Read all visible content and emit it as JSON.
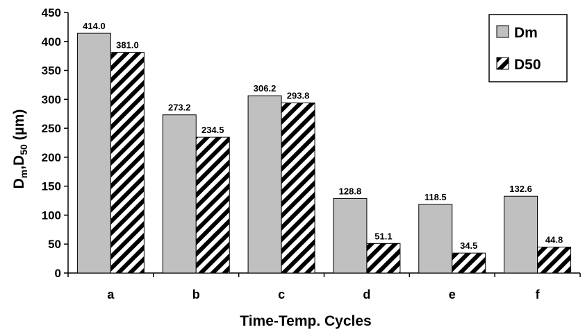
{
  "chart_data": {
    "type": "bar",
    "categories": [
      "a",
      "b",
      "c",
      "d",
      "e",
      "f"
    ],
    "series": [
      {
        "name": "Dm",
        "values": [
          414.0,
          273.2,
          306.2,
          128.8,
          118.5,
          132.6
        ],
        "labels": [
          "414.0",
          "273.2",
          "306.2",
          "128.8",
          "118.5",
          "132.6"
        ]
      },
      {
        "name": "D50",
        "values": [
          381.0,
          234.5,
          293.8,
          51.1,
          34.5,
          44.8
        ],
        "labels": [
          "381.0",
          "234.5",
          "293.8",
          "51.1",
          "34.5",
          "44.8"
        ]
      }
    ],
    "xlabel": "Time-Temp. Cycles",
    "ylabel": {
      "base1": "D",
      "sub1": "m",
      "sep": ",",
      "base2": "D",
      "sub2": "50",
      "unit": " (µm)"
    },
    "ylim": [
      0,
      450
    ],
    "yticks": [
      0,
      50,
      100,
      150,
      200,
      250,
      300,
      350,
      400,
      450
    ],
    "grid": false,
    "legend_position": "top-right",
    "colors": {
      "Dm": "#c0c0c0",
      "D50": "hatched black/white",
      "outline": "#000000"
    }
  }
}
